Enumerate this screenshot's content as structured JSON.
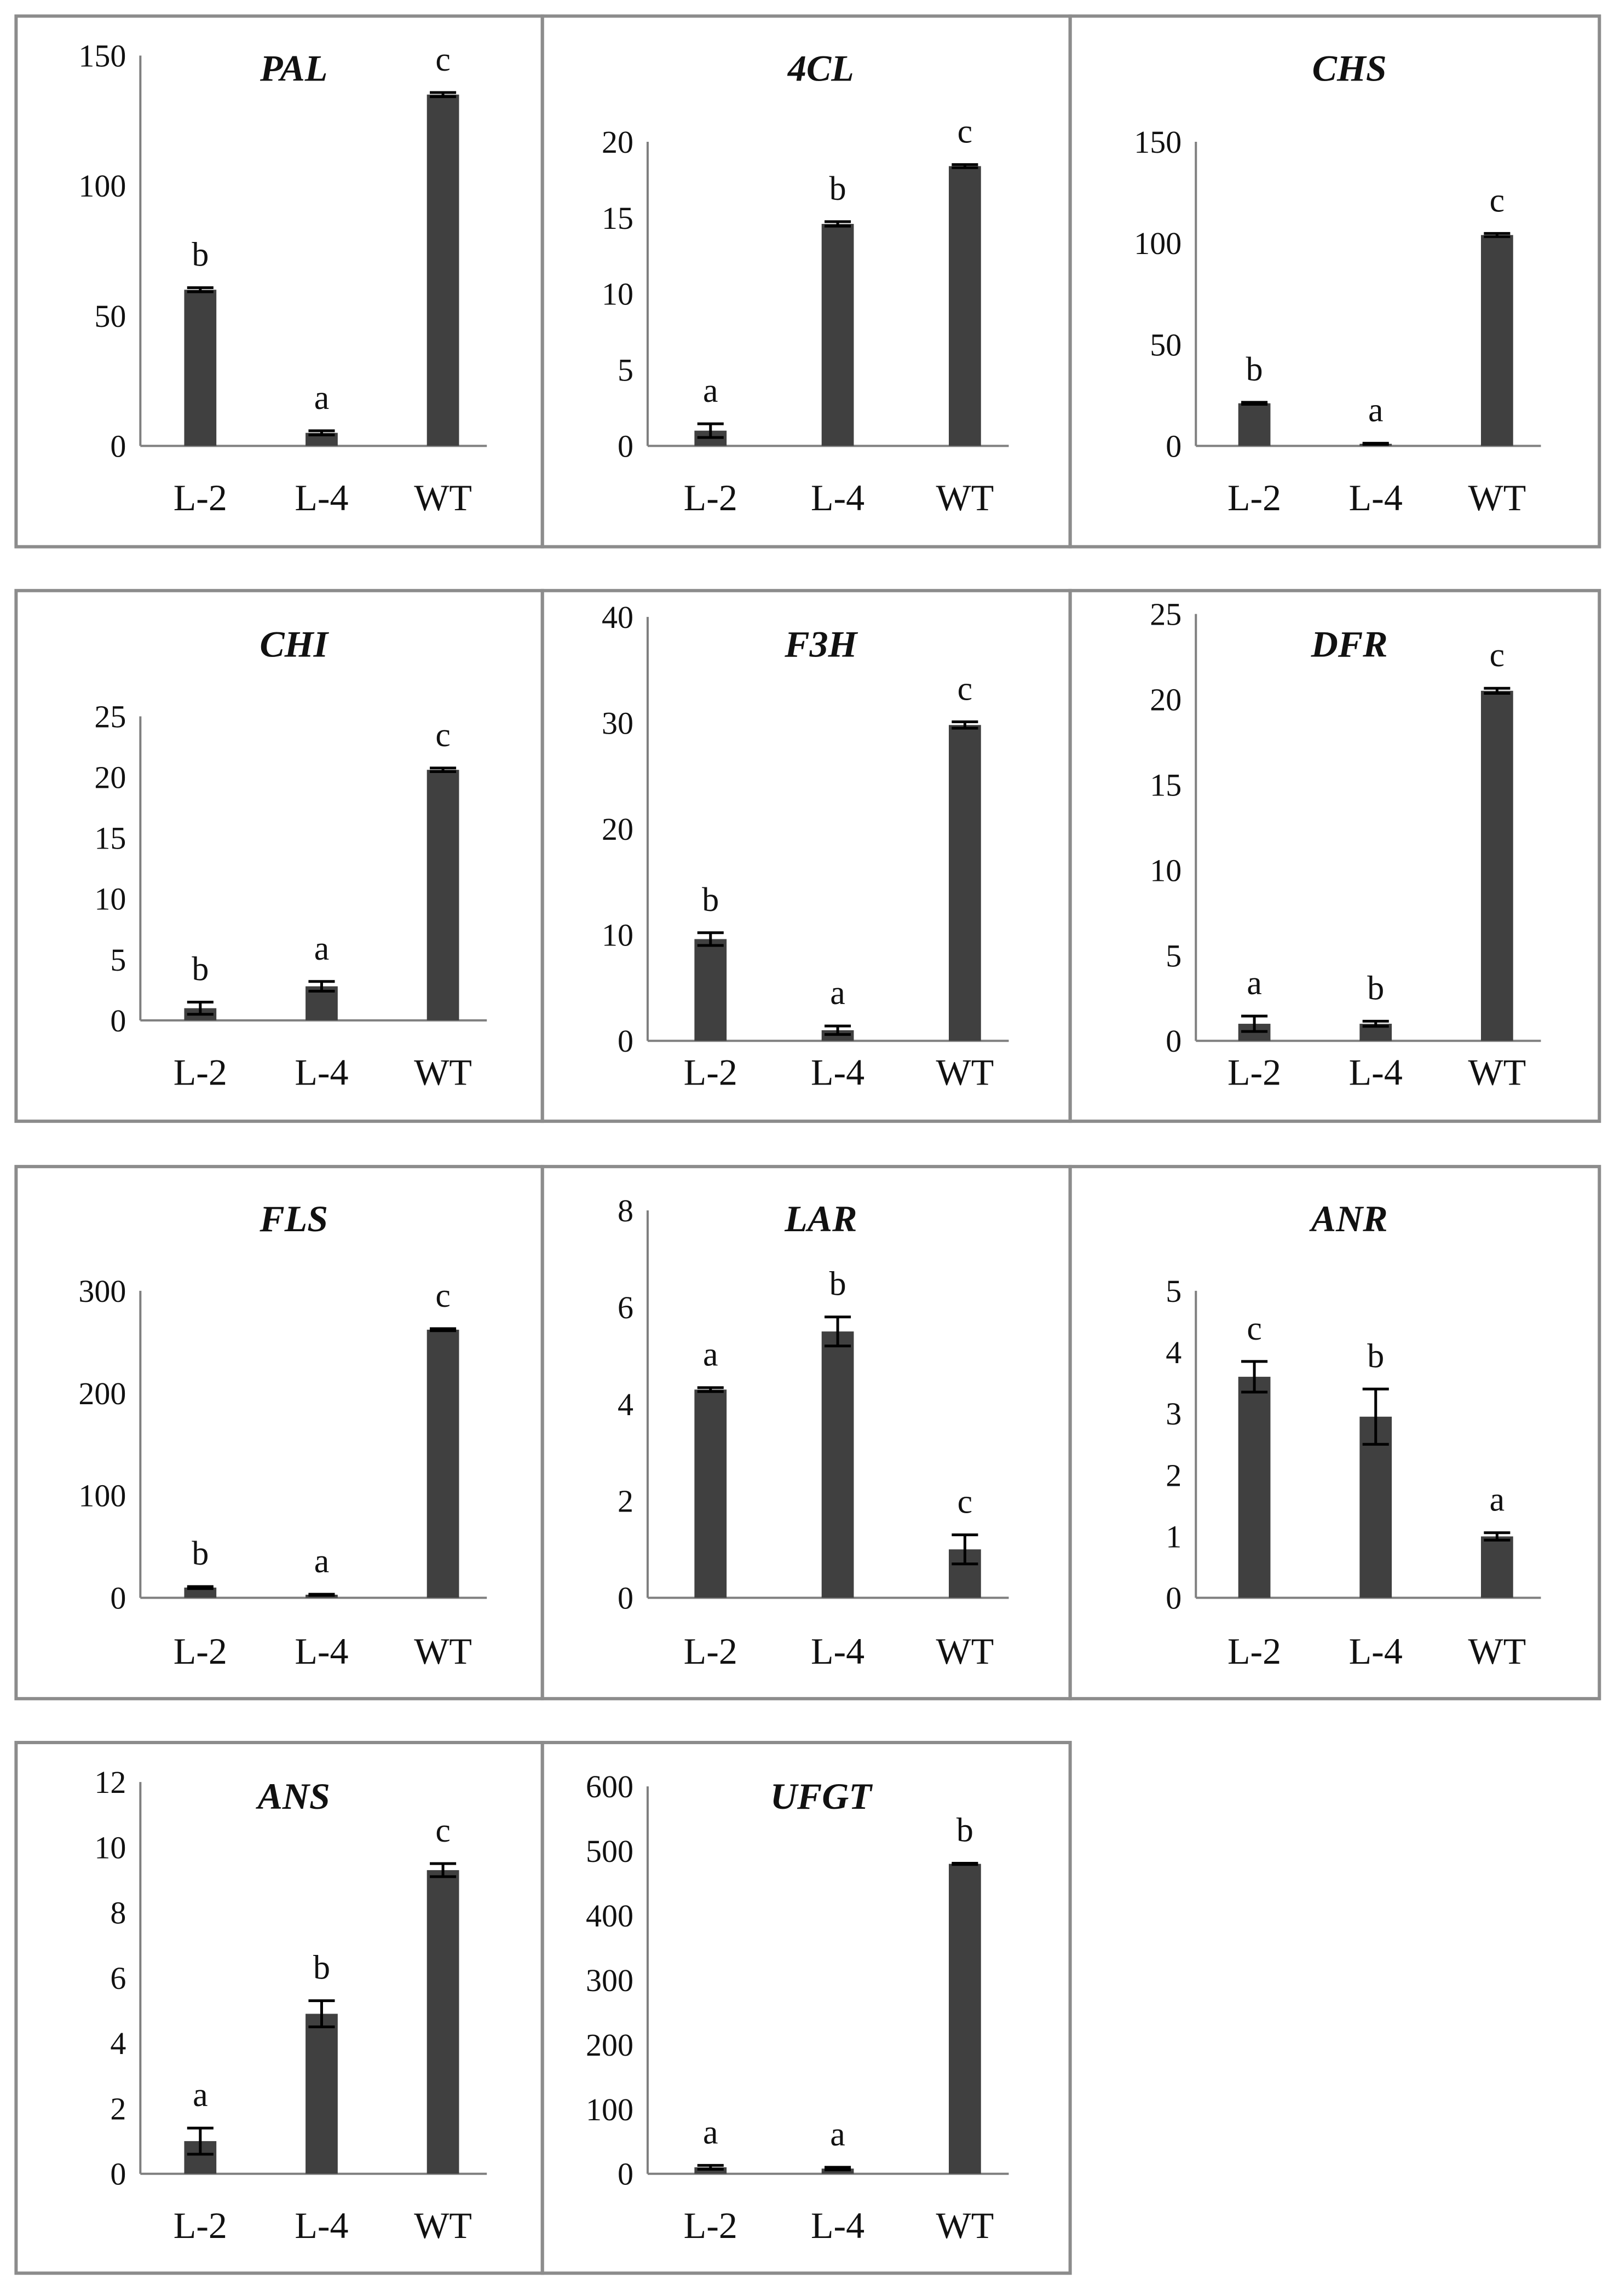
{
  "colors": {
    "bar": "#404040",
    "frame": "#8c8c8c",
    "axis": "#7f7f7f",
    "text": "#111111"
  },
  "chart_data": [
    {
      "type": "bar",
      "title": "PAL",
      "categories": [
        "L-2",
        "L-4",
        "WT"
      ],
      "values": [
        60,
        5,
        135
      ],
      "errors": [
        0.8,
        0.8,
        0.8
      ],
      "letters": [
        "b",
        "a",
        "c"
      ],
      "ylim": [
        0,
        150
      ],
      "yticks": [
        0,
        50,
        100,
        150
      ],
      "xlabel": "",
      "ylabel": ""
    },
    {
      "type": "bar",
      "title": "4CL",
      "categories": [
        "L-2",
        "L-4",
        "WT"
      ],
      "values": [
        1,
        14.6,
        18.4
      ],
      "errors": [
        0.45,
        0.15,
        0.1
      ],
      "letters": [
        "a",
        "b",
        "c"
      ],
      "ylim": [
        0,
        20
      ],
      "yticks": [
        0,
        5,
        10,
        15,
        20
      ],
      "xlabel": "",
      "ylabel": ""
    },
    {
      "type": "bar",
      "title": "CHS",
      "categories": [
        "L-2",
        "L-4",
        "WT"
      ],
      "values": [
        21,
        1,
        104
      ],
      "errors": [
        0.5,
        0.3,
        0.8
      ],
      "letters": [
        "b",
        "a",
        "c"
      ],
      "ylim": [
        0,
        150
      ],
      "yticks": [
        0,
        50,
        100,
        150
      ],
      "xlabel": "",
      "ylabel": ""
    },
    {
      "type": "bar",
      "title": "CHI",
      "categories": [
        "L-2",
        "L-4",
        "WT"
      ],
      "values": [
        1,
        2.8,
        20.6
      ],
      "errors": [
        0.5,
        0.4,
        0.15
      ],
      "letters": [
        "b",
        "a",
        "c"
      ],
      "ylim": [
        0,
        25
      ],
      "yticks": [
        0,
        5,
        10,
        15,
        20,
        25
      ],
      "xlabel": "",
      "ylabel": ""
    },
    {
      "type": "bar",
      "title": "F3H",
      "categories": [
        "L-2",
        "L-4",
        "WT"
      ],
      "values": [
        9.6,
        1,
        29.8
      ],
      "errors": [
        0.6,
        0.4,
        0.3
      ],
      "letters": [
        "b",
        "a",
        "c"
      ],
      "ylim": [
        0,
        40
      ],
      "yticks": [
        0,
        10,
        20,
        30,
        40
      ],
      "xlabel": "",
      "ylabel": ""
    },
    {
      "type": "bar",
      "title": "DFR",
      "categories": [
        "L-2",
        "L-4",
        "WT"
      ],
      "values": [
        1,
        1,
        20.5
      ],
      "errors": [
        0.45,
        0.15,
        0.15
      ],
      "letters": [
        "a",
        "b",
        "c"
      ],
      "ylim": [
        0,
        25
      ],
      "yticks": [
        0,
        5,
        10,
        15,
        20,
        25
      ],
      "xlabel": "",
      "ylabel": ""
    },
    {
      "type": "bar",
      "title": "FLS",
      "categories": [
        "L-2",
        "L-4",
        "WT"
      ],
      "values": [
        10,
        3,
        262
      ],
      "errors": [
        1,
        0.5,
        1
      ],
      "letters": [
        "b",
        "a",
        "c"
      ],
      "ylim": [
        0,
        300
      ],
      "yticks": [
        0,
        100,
        200,
        300
      ],
      "xlabel": "",
      "ylabel": ""
    },
    {
      "type": "bar",
      "title": "LAR",
      "categories": [
        "L-2",
        "L-4",
        "WT"
      ],
      "values": [
        4.3,
        5.5,
        1
      ],
      "errors": [
        0.04,
        0.3,
        0.3
      ],
      "letters": [
        "a",
        "b",
        "c"
      ],
      "ylim": [
        0,
        8
      ],
      "yticks": [
        0,
        2,
        4,
        6,
        8
      ],
      "xlabel": "",
      "ylabel": ""
    },
    {
      "type": "bar",
      "title": "ANR",
      "categories": [
        "L-2",
        "L-4",
        "WT"
      ],
      "values": [
        3.6,
        2.95,
        1
      ],
      "errors": [
        0.25,
        0.45,
        0.06
      ],
      "letters": [
        "c",
        "b",
        "a"
      ],
      "ylim": [
        0,
        5
      ],
      "yticks": [
        0,
        1,
        2,
        3,
        4,
        5
      ],
      "xlabel": "",
      "ylabel": ""
    },
    {
      "type": "bar",
      "title": "ANS",
      "categories": [
        "L-2",
        "L-4",
        "WT"
      ],
      "values": [
        1,
        4.9,
        9.3
      ],
      "errors": [
        0.4,
        0.4,
        0.2
      ],
      "letters": [
        "a",
        "b",
        "c"
      ],
      "ylim": [
        0,
        12
      ],
      "yticks": [
        0,
        2,
        4,
        6,
        8,
        10,
        12
      ],
      "xlabel": "",
      "ylabel": ""
    },
    {
      "type": "bar",
      "title": "UFGT",
      "categories": [
        "L-2",
        "L-4",
        "WT"
      ],
      "values": [
        10,
        8,
        480
      ],
      "errors": [
        3,
        2,
        1
      ],
      "letters": [
        "a",
        "a",
        "b"
      ],
      "ylim": [
        0,
        600
      ],
      "yticks": [
        0,
        100,
        200,
        300,
        400,
        500,
        600
      ],
      "xlabel": "",
      "ylabel": ""
    }
  ]
}
